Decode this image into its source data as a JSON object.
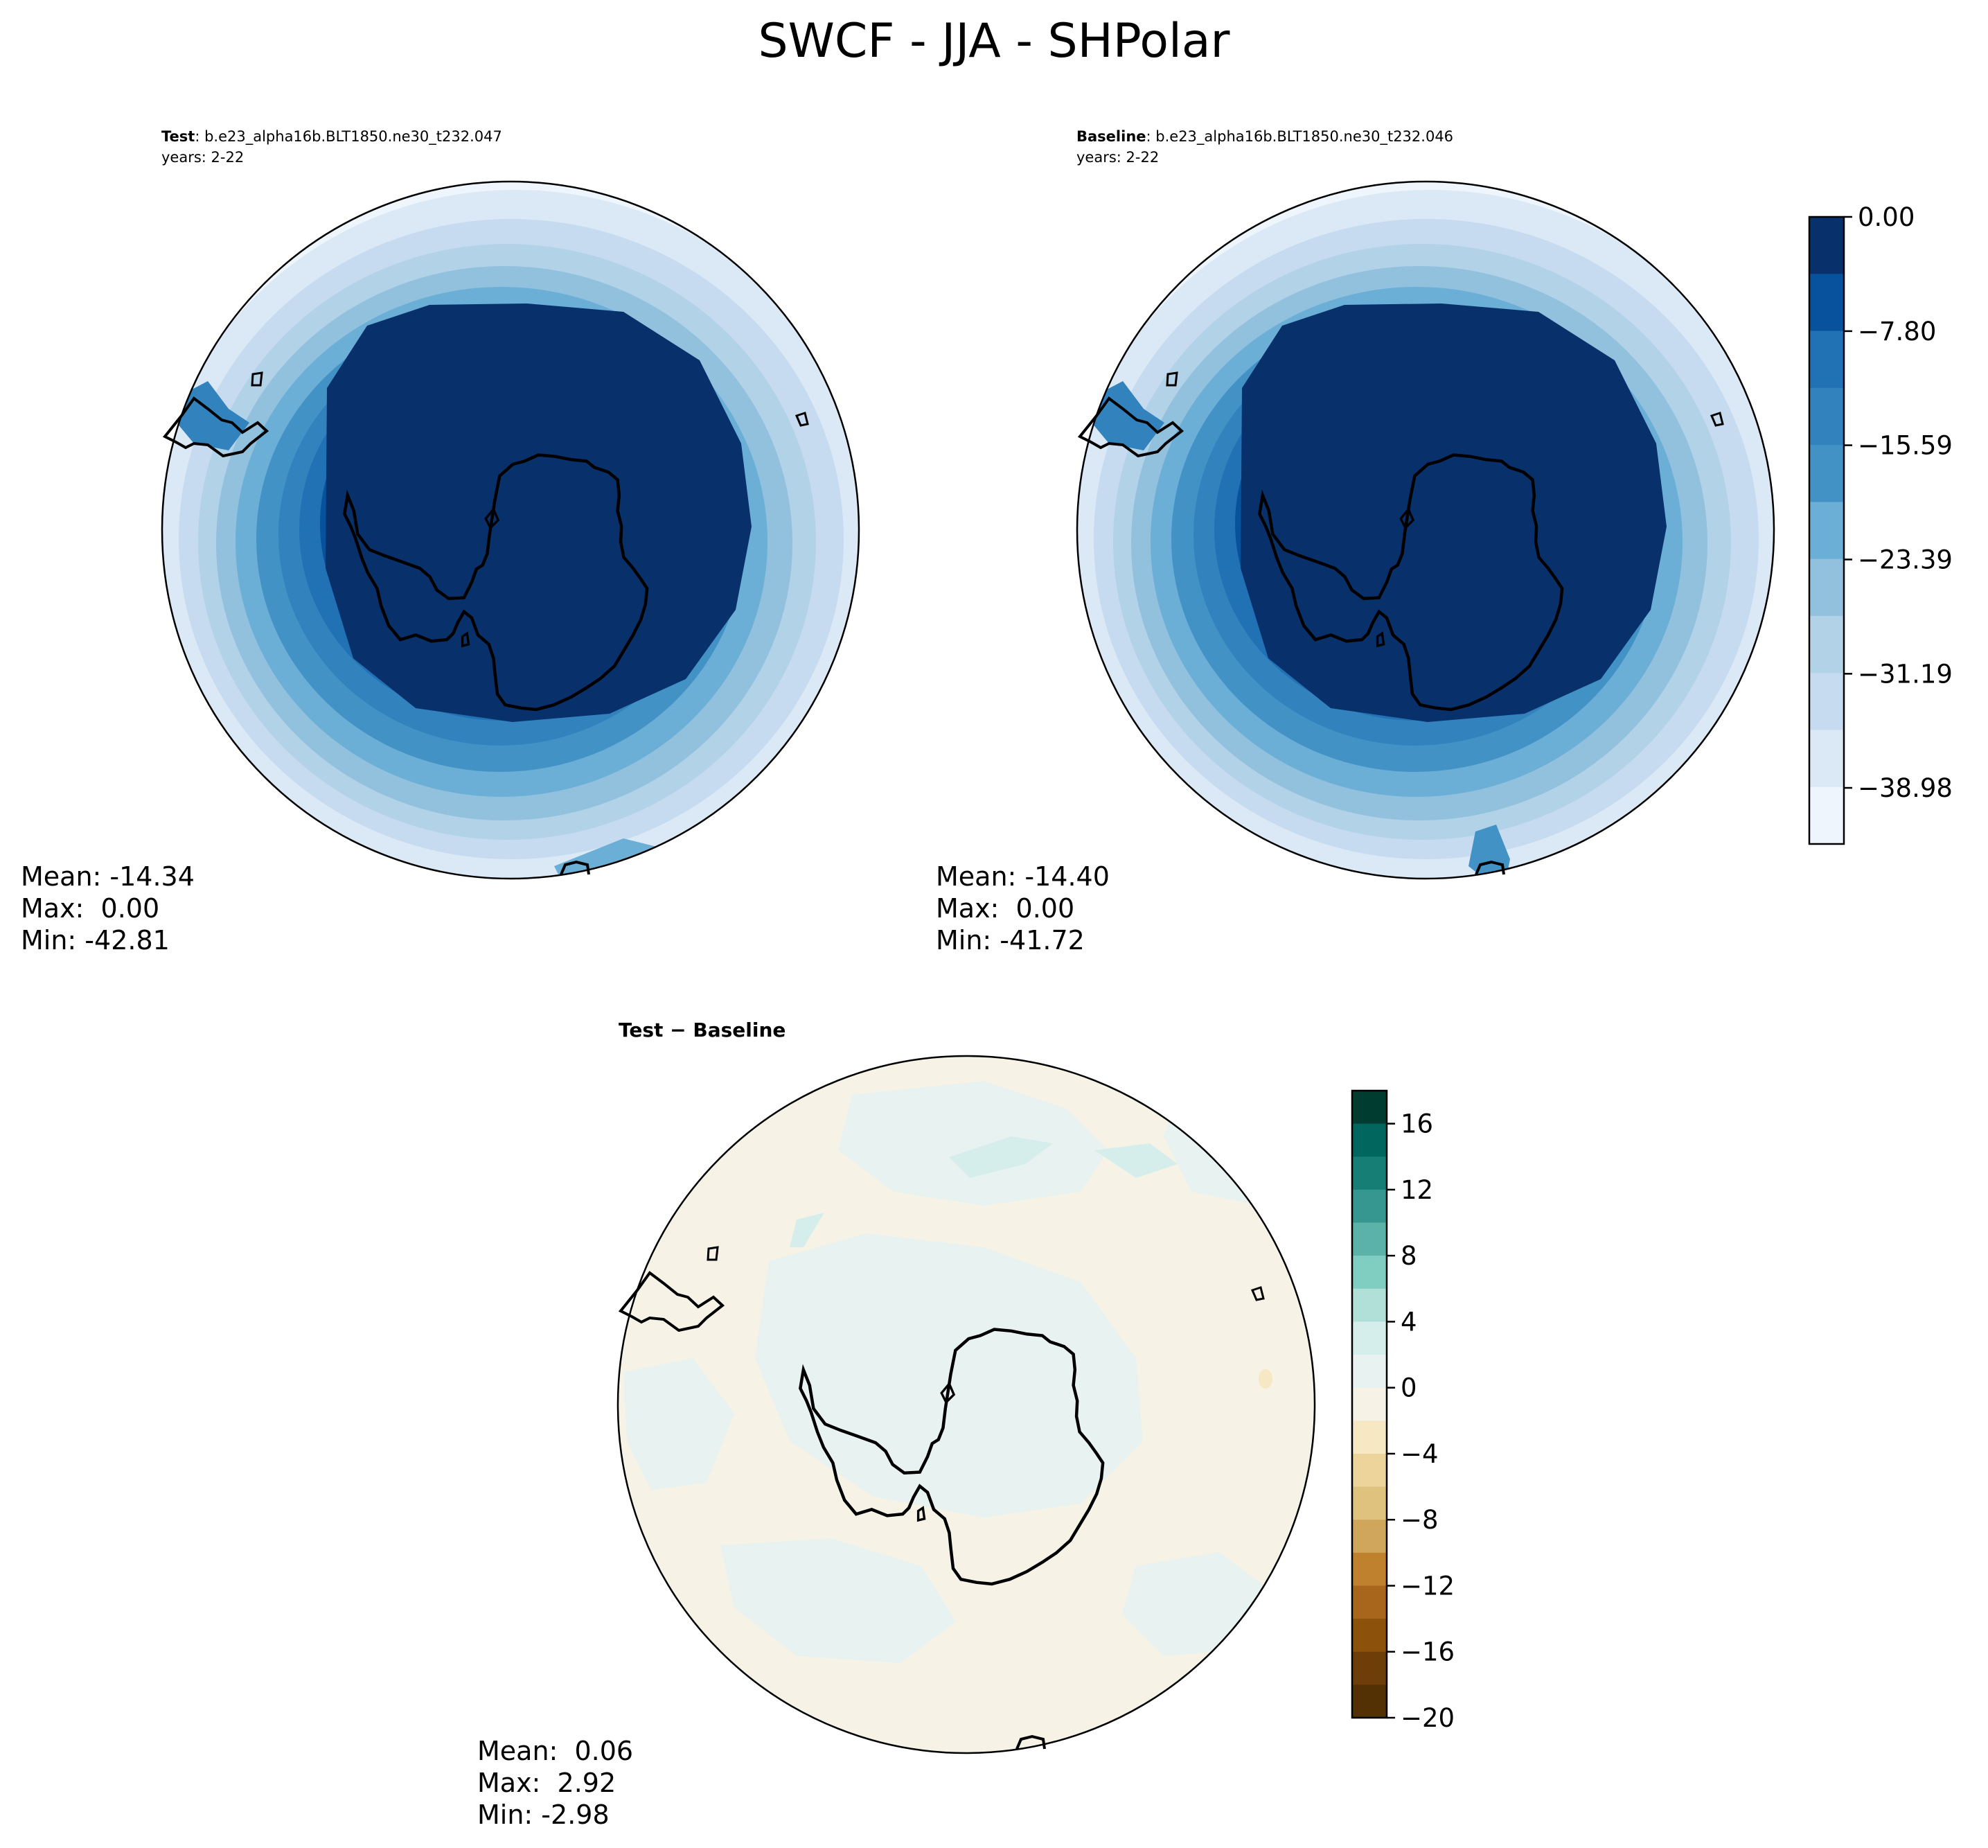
{
  "figure": {
    "title": "SWCF - JJA - SHPolar"
  },
  "panels": [
    {
      "id": "test",
      "label": "Test",
      "case": ": b.e23_alpha16b.BLT1850.ne30_t232.047",
      "years": "years: 2-22",
      "stats": {
        "mean": "Mean: -14.34",
        "max": "Max:  0.00",
        "min": "Min: -42.81"
      }
    },
    {
      "id": "baseline",
      "label": "Baseline",
      "case": ": b.e23_alpha16b.BLT1850.ne30_t232.046",
      "years": "years: 2-22",
      "stats": {
        "mean": "Mean: -14.40",
        "max": "Max:  0.00",
        "min": "Min: -41.72"
      }
    },
    {
      "id": "difference",
      "title": "Test − Baseline",
      "stats": {
        "mean": "Mean:  0.06",
        "max": "Max:  2.92",
        "min": "Min: -2.98"
      }
    }
  ],
  "colorbars": {
    "field": {
      "colormap": "Blues",
      "vmin": -42.81,
      "vmax": 0.0,
      "tick_labels": [
        "0.00",
        "−7.80",
        "−15.59",
        "−23.39",
        "−31.19",
        "−38.98"
      ],
      "tick_values": [
        0.0,
        -7.8,
        -15.59,
        -23.39,
        -31.19,
        -38.98
      ],
      "colors_top_to_bottom": [
        "#08306b",
        "#08519c",
        "#2171b5",
        "#3282be",
        "#4292c6",
        "#6baed6",
        "#92c1de",
        "#b2d2e8",
        "#c6dbef",
        "#dbe9f6",
        "#eef5fc"
      ]
    },
    "difference": {
      "colormap": "BrBG",
      "vmin": -20,
      "vmax": 18,
      "tick_labels": [
        "16",
        "12",
        "8",
        "4",
        "0",
        "−4",
        "−8",
        "−12",
        "−16",
        "−20"
      ],
      "tick_values": [
        16,
        12,
        8,
        4,
        0,
        -4,
        -8,
        -12,
        -16,
        -20
      ],
      "colors_top_to_bottom": [
        "#003c30",
        "#01665e",
        "#177e76",
        "#35978f",
        "#5ab2a8",
        "#80cdc1",
        "#b1e0d8",
        "#d6eeeb",
        "#e8f2f0",
        "#f6f3e6",
        "#f6e8c3",
        "#ecd49a",
        "#dfc27d",
        "#d0a65c",
        "#bf812d",
        "#a8661c",
        "#8c510a",
        "#6e3e08",
        "#543005"
      ]
    }
  }
}
